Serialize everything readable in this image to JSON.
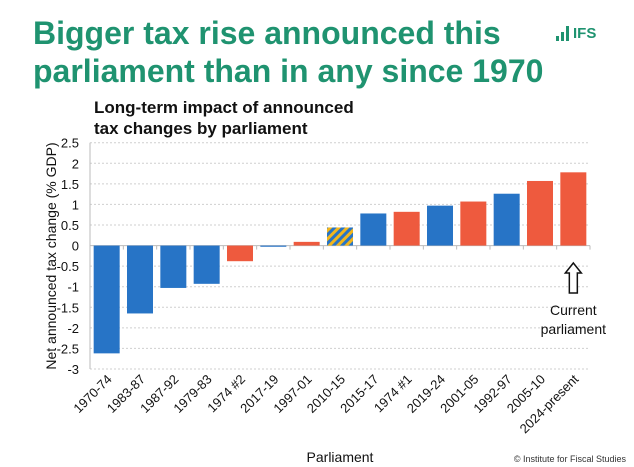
{
  "title": "Bigger tax rise announced this\nparliament than in any since 1970",
  "logo_text": "IFS",
  "copyright": "© Institute for Fiscal Studies",
  "colors": {
    "title": "#1f9370",
    "blue": "#2774c6",
    "red": "#ee5a3e",
    "hatch_blue": "#2774c6",
    "hatch_yellow": "#f2b61c"
  },
  "chart_data": {
    "type": "bar",
    "title": "Long-term impact of announced\ntax changes by parliament",
    "xlabel": "Parliament",
    "ylabel": "Net announced tax change (% GDP)",
    "ylim": [
      -3,
      2.5
    ],
    "yticks": [
      2.5,
      2,
      1.5,
      1,
      0.5,
      0,
      -0.5,
      -1,
      -1.5,
      -2,
      -2.5,
      -3
    ],
    "grid": true,
    "categories": [
      "1970-74",
      "1983-87",
      "1987-92",
      "1979-83",
      "1974 #2",
      "2017-19",
      "1997-01",
      "2010-15",
      "2015-17",
      "1974 #1",
      "2019-24",
      "2001-05",
      "1992-97",
      "2005-10",
      "2024-present"
    ],
    "values": [
      -2.62,
      -1.65,
      -1.03,
      -0.93,
      -0.38,
      -0.01,
      0.09,
      0.44,
      0.78,
      0.82,
      0.97,
      1.07,
      1.26,
      1.57,
      1.78
    ],
    "bar_colors": [
      "blue",
      "blue",
      "blue",
      "blue",
      "red",
      "blue",
      "red",
      "hatched",
      "blue",
      "red",
      "blue",
      "red",
      "blue",
      "red",
      "red"
    ],
    "annotation": {
      "category": "2024-present",
      "line1": "Current",
      "line2": "parliament",
      "icon": "up-arrow-icon"
    }
  }
}
